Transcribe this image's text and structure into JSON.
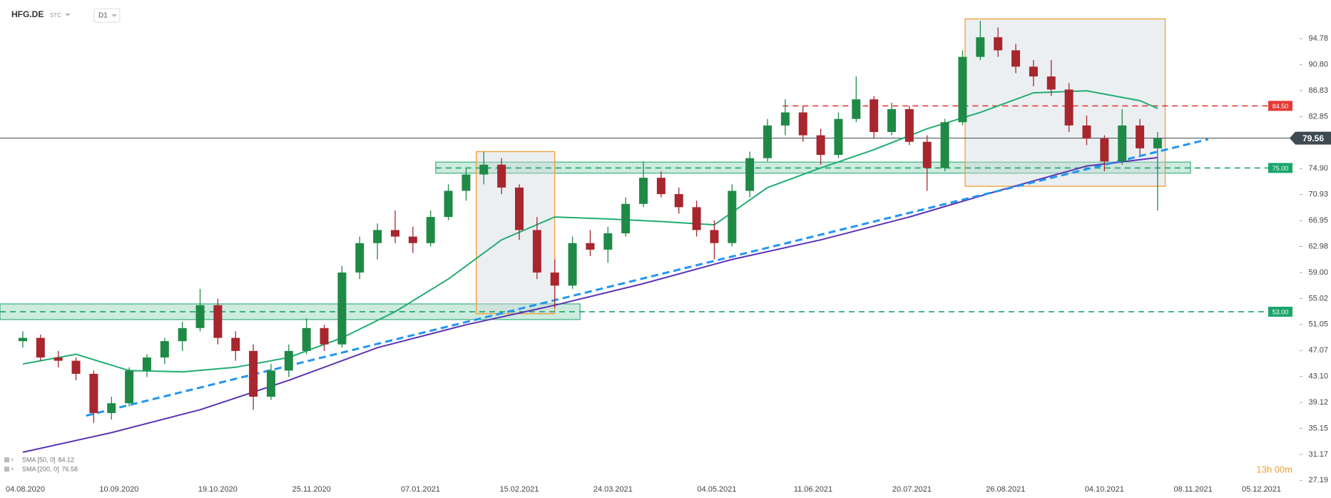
{
  "chart_data": {
    "type": "candlestick",
    "symbol": "HFG.DE",
    "class": "STC",
    "timeframe": "D1",
    "countdown": "13h 00m",
    "x": [
      "03.08.2020",
      "10.08.2020",
      "17.08.2020",
      "24.08.2020",
      "31.08.2020",
      "07.09.2020",
      "14.09.2020",
      "21.09.2020",
      "28.09.2020",
      "05.10.2020",
      "12.10.2020",
      "19.10.2020",
      "26.10.2020",
      "02.11.2020",
      "09.11.2020",
      "16.11.2020",
      "23.11.2020",
      "30.11.2020",
      "07.12.2020",
      "14.12.2020",
      "21.12.2020",
      "28.12.2020",
      "04.01.2021",
      "11.01.2021",
      "18.01.2021",
      "25.01.2021",
      "01.02.2021",
      "08.02.2021",
      "15.02.2021",
      "22.02.2021",
      "01.03.2021",
      "08.03.2021",
      "15.03.2021",
      "22.03.2021",
      "29.03.2021",
      "05.04.2021",
      "12.04.2021",
      "19.04.2021",
      "26.04.2021",
      "03.05.2021",
      "10.05.2021",
      "17.05.2021",
      "24.05.2021",
      "31.05.2021",
      "07.06.2021",
      "14.06.2021",
      "21.06.2021",
      "28.06.2021",
      "05.07.2021",
      "12.07.2021",
      "19.07.2021",
      "26.07.2021",
      "02.08.2021",
      "09.08.2021",
      "16.08.2021",
      "23.08.2021",
      "30.08.2021",
      "06.09.2021",
      "13.09.2021",
      "20.09.2021",
      "27.09.2021",
      "04.10.2021",
      "11.10.2021",
      "18.10.2021",
      "25.10.2021"
    ],
    "open": [
      48.5,
      49,
      46,
      45.5,
      43.5,
      37.5,
      39,
      44,
      46,
      48.5,
      50.5,
      54,
      49,
      47,
      40,
      44,
      47,
      50.5,
      48,
      59,
      63.5,
      65.5,
      64.5,
      63.5,
      67.5,
      71.5,
      74,
      75.5,
      72,
      65.5,
      59,
      57,
      63.5,
      62.5,
      65,
      69.5,
      73.5,
      71,
      69,
      65.5,
      63.5,
      71.5,
      76.5,
      81.5,
      83.5,
      80,
      77,
      82.5,
      85.5,
      80.5,
      84,
      79,
      75,
      82,
      92,
      95,
      93,
      90.5,
      89,
      87,
      81.5,
      79.5,
      76,
      81.5,
      78
    ],
    "high": [
      50,
      49.5,
      47,
      46,
      44,
      40,
      44.5,
      46.5,
      49,
      51.5,
      56.5,
      55,
      50,
      48,
      45,
      48,
      52,
      51,
      60,
      64.5,
      66.5,
      68.5,
      66,
      68.5,
      72.5,
      75,
      77.5,
      76.5,
      72.5,
      67.5,
      61,
      64.5,
      65.5,
      66,
      70.5,
      76,
      74.5,
      72,
      70,
      67,
      72.5,
      77.5,
      82.5,
      85.5,
      84.5,
      81,
      83.5,
      89,
      86,
      85,
      84.5,
      80,
      82.5,
      93,
      97.5,
      96.5,
      94,
      91.5,
      91.5,
      88,
      83,
      80,
      84,
      82.5,
      80.5
    ],
    "low": [
      47.5,
      45.5,
      44.5,
      42.5,
      36,
      36.5,
      38.5,
      43,
      45,
      47,
      50,
      48,
      45.5,
      38,
      39.5,
      43,
      46.5,
      47,
      47.5,
      58,
      61,
      63.5,
      62,
      63,
      67,
      70,
      72.5,
      71,
      64,
      58,
      53.5,
      56.5,
      61.5,
      60.5,
      64.5,
      69,
      70.5,
      68,
      64.5,
      61,
      63,
      70.5,
      76,
      80,
      79,
      75.5,
      76.5,
      82,
      79.5,
      80,
      78.5,
      71.5,
      74.5,
      81.5,
      91.5,
      92,
      89.5,
      87.5,
      86,
      80.5,
      78.5,
      74.5,
      75.5,
      77,
      68.5
    ],
    "close": [
      49,
      46,
      45.5,
      43.5,
      37.5,
      39,
      44,
      46,
      48.5,
      50.5,
      54,
      49,
      47,
      40,
      44,
      47,
      50.5,
      48,
      59,
      63.5,
      65.5,
      64.5,
      63.5,
      67.5,
      71.5,
      74,
      75.5,
      72,
      65.5,
      59,
      57,
      63.5,
      62.5,
      65,
      69.5,
      73.5,
      71,
      69,
      65.5,
      63.5,
      71.5,
      76.5,
      81.5,
      83.5,
      80,
      77,
      82.5,
      85.5,
      80.5,
      84,
      79,
      75,
      82,
      92,
      95,
      93,
      90.5,
      89,
      87,
      81.5,
      79.5,
      76,
      81.5,
      78,
      79.56
    ],
    "bull_color": "#1f8a46",
    "bear_color": "#a8262e",
    "series": [
      {
        "name": "SMA [50, 0]",
        "color": "#21ad72",
        "x": [
          "03.08.2020",
          "24.08.2020",
          "14.09.2020",
          "05.10.2020",
          "26.10.2020",
          "16.11.2020",
          "07.12.2020",
          "28.12.2020",
          "18.01.2021",
          "08.02.2021",
          "01.03.2021",
          "22.03.2021",
          "12.04.2021",
          "03.05.2021",
          "24.05.2021",
          "14.06.2021",
          "05.07.2021",
          "26.07.2021",
          "16.08.2021",
          "06.09.2021",
          "27.09.2021",
          "18.10.2021",
          "25.10.2021"
        ],
        "values": [
          45,
          46.5,
          44,
          43.8,
          44.5,
          46,
          49,
          53,
          58,
          64,
          67.5,
          67.2,
          66.8,
          66.3,
          72,
          75,
          77.8,
          81,
          83.5,
          86.5,
          86.8,
          85.3,
          84.12
        ]
      },
      {
        "name": "SMA [200, 0]",
        "color": "#5b34b5",
        "x": [
          "03.08.2020",
          "07.09.2020",
          "12.10.2020",
          "16.11.2020",
          "21.12.2020",
          "25.01.2021",
          "01.03.2021",
          "05.04.2021",
          "10.05.2021",
          "14.06.2021",
          "19.07.2021",
          "23.08.2021",
          "27.09.2021",
          "25.10.2021"
        ],
        "values": [
          31.5,
          34.5,
          38,
          42.5,
          47.5,
          51,
          54,
          57.3,
          61,
          64,
          67.5,
          71.5,
          75.3,
          76.58
        ]
      }
    ],
    "levels": [
      {
        "value": 84.5,
        "label": "84.50",
        "color": "#e53935",
        "from": "30.05.2021"
      },
      {
        "value": 75,
        "label": "75.00",
        "color": "#1aa56a",
        "from": "13.01.2021"
      },
      {
        "value": 53,
        "label": "53.00",
        "color": "#1aa56a",
        "from": "25.07.2020"
      }
    ],
    "zones": [
      {
        "x": [
          "13.01.2021",
          "07.11.2021"
        ],
        "y": [
          74.2,
          75.9
        ],
        "color": "#1aa56a"
      },
      {
        "x": [
          "25.07.2020",
          "11.03.2021"
        ],
        "y": [
          51.8,
          54.2
        ],
        "color": "#1aa56a"
      }
    ],
    "boxes": [
      {
        "x": [
          "29.01.2021",
          "01.03.2021"
        ],
        "y": [
          52.7,
          77.5
        ],
        "color": "#f39c32"
      },
      {
        "x": [
          "10.08.2021",
          "28.10.2021"
        ],
        "y": [
          72.2,
          97.8
        ],
        "color": "#f39c32"
      }
    ],
    "trendline": {
      "x": [
        "28.08.2020",
        "14.11.2021"
      ],
      "y": [
        37.1,
        79.4
      ],
      "color": "#2196f3"
    },
    "price": 79.56,
    "xlim": [
      "25.07.2020",
      "24.12.2021"
    ],
    "ylim": [
      26.9,
      100.7
    ],
    "xticks": [
      "04.08.2020",
      "10.09.2020",
      "19.10.2020",
      "25.11.2020",
      "07.01.2021",
      "15.02.2021",
      "24.03.2021",
      "04.05.2021",
      "11.06.2021",
      "20.07.2021",
      "26.08.2021",
      "04.10.2021",
      "08.11.2021",
      "05.12.2021"
    ],
    "yticks": [
      94.78,
      {
        "value": 90.8,
        "label": "90.80"
      },
      86.83,
      82.85,
      {
        "value": 74.9,
        "label": "74.90"
      },
      70.93,
      66.95,
      62.98,
      {
        "value": 59,
        "label": "59.00"
      },
      55.02,
      51.05,
      47.07,
      {
        "value": 43.1,
        "label": "43.10"
      },
      39.12,
      35.15,
      31.17,
      27.19
    ]
  }
}
